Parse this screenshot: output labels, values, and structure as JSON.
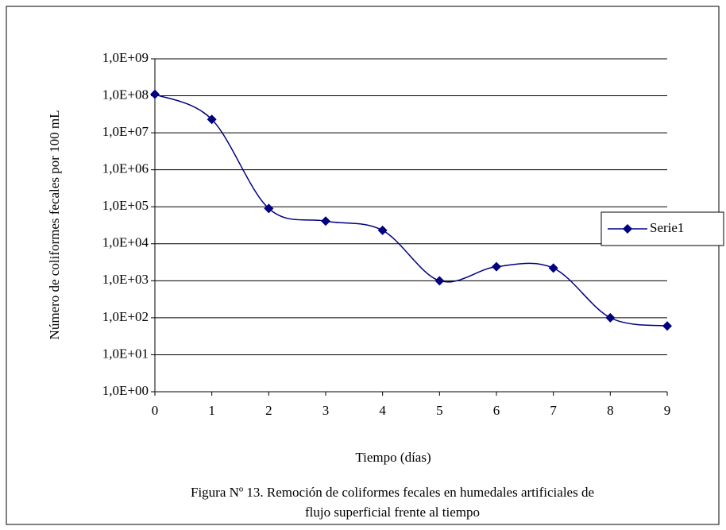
{
  "chart_data": {
    "type": "line",
    "y_label": "Número de coliformes fecales por 100 mL",
    "x_label": "Tiempo (días)",
    "caption": [
      "Figura Nº 13. Remoción de coliformes fecales en humedales artificiales de",
      "flujo superficial frente al tiempo"
    ],
    "x": [
      0,
      1,
      2,
      3,
      4,
      5,
      6,
      7,
      8,
      9
    ],
    "series": [
      {
        "name": "Serie1",
        "color": "#000080",
        "values": [
          110000000,
          23000000,
          90000,
          41000,
          23000,
          1000,
          2400,
          2200,
          100,
          60
        ]
      }
    ],
    "xlim": [
      0,
      9
    ],
    "xticks": [
      0,
      1,
      2,
      3,
      4,
      5,
      6,
      7,
      8,
      9
    ],
    "ylim": [
      1,
      1000000000
    ],
    "log_y": true,
    "yticks": [
      {
        "value": 1,
        "label": "1,0E+00"
      },
      {
        "value": 10,
        "label": "1,0E+01"
      },
      {
        "value": 100,
        "label": "1,0E+02"
      },
      {
        "value": 1000,
        "label": "1,0E+03"
      },
      {
        "value": 10000,
        "label": "1,0E+04"
      },
      {
        "value": 100000,
        "label": "1,0E+05"
      },
      {
        "value": 1000000,
        "label": "1,0E+06"
      },
      {
        "value": 10000000,
        "label": "1,0E+07"
      },
      {
        "value": 100000000,
        "label": "1,0E+08"
      },
      {
        "value": 1000000000,
        "label": "1,0E+09"
      }
    ],
    "grid": true,
    "legend": "right"
  }
}
